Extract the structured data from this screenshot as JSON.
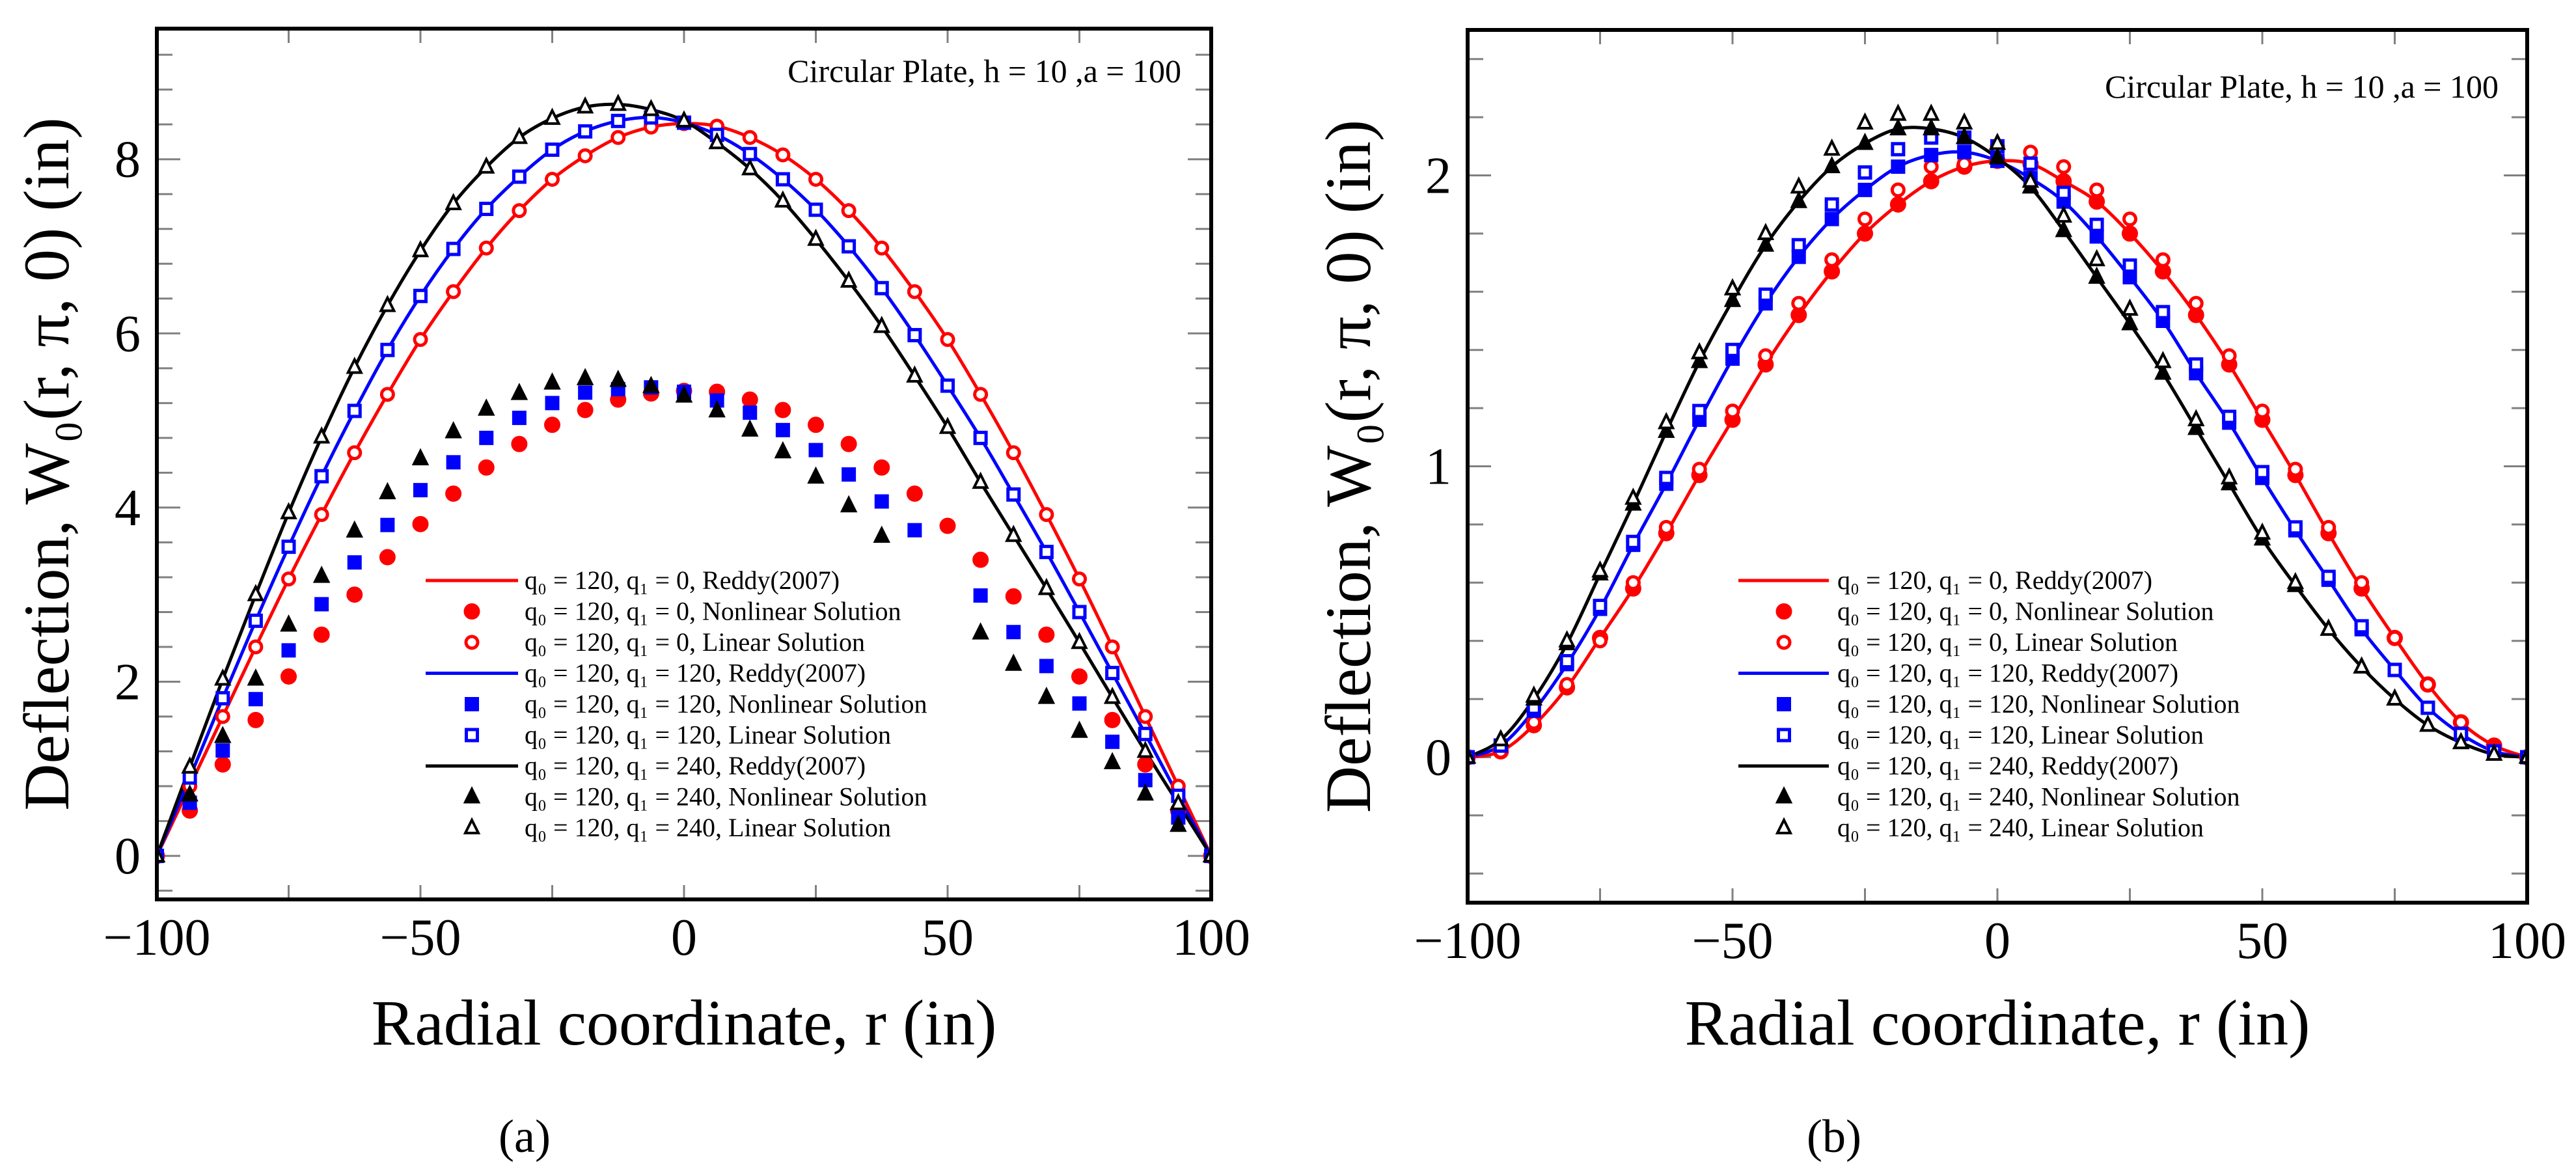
{
  "chart_data": [
    {
      "id": "a",
      "type": "line",
      "caption": "(a)",
      "annotation": "Circular Plate, h = 10 ,a = 100",
      "xlabel": "Radial coordinate, r (in)",
      "ylabel": "Deflection, W₀(r, π, 0) (in)",
      "xlim": [
        -100,
        100
      ],
      "ylim": [
        -0.5,
        9.5
      ],
      "xticks": [
        -100,
        -50,
        0,
        50,
        100
      ],
      "xtick_labels": [
        "−100",
        "−50",
        "0",
        "50",
        "100"
      ],
      "xminor_step": 25,
      "yticks": [
        0,
        2,
        4,
        6,
        8
      ],
      "ytick_labels": [
        "0",
        "2",
        "4",
        "6",
        "8"
      ],
      "yminor_step": 0.4,
      "legend_position": "center-bottom",
      "x": [
        -100,
        -93.75,
        -87.5,
        -81.25,
        -75,
        -68.75,
        -62.5,
        -56.25,
        -50,
        -43.75,
        -37.5,
        -31.25,
        -25,
        -18.75,
        -12.5,
        -6.25,
        0,
        6.25,
        12.5,
        18.75,
        25,
        31.25,
        37.5,
        43.75,
        50,
        56.25,
        62.5,
        68.75,
        75,
        81.25,
        87.5,
        93.75,
        100
      ],
      "series": [
        {
          "name": "q₀ = 120, q₁ = 0, Reddy(2007)",
          "color": "#ff0000",
          "style": "line",
          "values": [
            0,
            0.8,
            1.6,
            2.4,
            3.18,
            3.92,
            4.63,
            5.3,
            5.93,
            6.48,
            6.98,
            7.41,
            7.77,
            8.04,
            8.25,
            8.37,
            8.41,
            8.38,
            8.25,
            8.05,
            7.77,
            7.41,
            6.98,
            6.48,
            5.93,
            5.3,
            4.63,
            3.92,
            3.18,
            2.4,
            1.6,
            0.8,
            0
          ]
        },
        {
          "name": "q₀ = 120, q₁ = 0, Nonlinear Solution",
          "color": "#ff0000",
          "style": "marker",
          "marker": "circle-filled",
          "values": [
            0,
            0.52,
            1.05,
            1.56,
            2.06,
            2.54,
            3.0,
            3.43,
            3.81,
            4.16,
            4.46,
            4.73,
            4.95,
            5.12,
            5.24,
            5.31,
            5.34,
            5.33,
            5.24,
            5.12,
            4.95,
            4.73,
            4.46,
            4.16,
            3.79,
            3.4,
            2.98,
            2.54,
            2.06,
            1.56,
            1.05,
            0.52,
            0
          ]
        },
        {
          "name": "q₀ = 120, q₁ = 0, Linear Solution",
          "color": "#ff0000",
          "style": "marker",
          "marker": "circle-open",
          "values": [
            0,
            0.8,
            1.6,
            2.4,
            3.18,
            3.92,
            4.63,
            5.3,
            5.93,
            6.48,
            6.98,
            7.41,
            7.77,
            8.04,
            8.25,
            8.37,
            8.41,
            8.38,
            8.25,
            8.05,
            7.77,
            7.41,
            6.98,
            6.48,
            5.93,
            5.3,
            4.63,
            3.92,
            3.18,
            2.4,
            1.6,
            0.8,
            0
          ]
        },
        {
          "name": "q₀ = 120, q₁ = 120, Reddy(2007)",
          "color": "#0000ff",
          "style": "line",
          "values": [
            0,
            0.9,
            1.81,
            2.7,
            3.55,
            4.36,
            5.11,
            5.81,
            6.43,
            6.97,
            7.43,
            7.8,
            8.11,
            8.32,
            8.44,
            8.48,
            8.42,
            8.28,
            8.06,
            7.77,
            7.42,
            7.0,
            6.52,
            5.98,
            5.4,
            4.8,
            4.15,
            3.49,
            2.8,
            2.1,
            1.4,
            0.69,
            0
          ]
        },
        {
          "name": "q₀ = 120, q₁ = 120, Nonlinear Solution",
          "color": "#0000ff",
          "style": "marker",
          "marker": "square-filled",
          "values": [
            0,
            0.61,
            1.21,
            1.8,
            2.36,
            2.89,
            3.37,
            3.8,
            4.2,
            4.52,
            4.8,
            5.03,
            5.2,
            5.32,
            5.36,
            5.38,
            5.33,
            5.23,
            5.09,
            4.89,
            4.66,
            4.38,
            4.07,
            3.74,
            null,
            2.99,
            2.57,
            2.18,
            1.75,
            1.31,
            0.87,
            0.44,
            0
          ]
        },
        {
          "name": "q₀ = 120, q₁ = 120, Linear Solution",
          "color": "#0000ff",
          "style": "marker",
          "marker": "square-open",
          "values": [
            0,
            0.9,
            1.81,
            2.7,
            3.55,
            4.36,
            5.11,
            5.81,
            6.43,
            6.97,
            7.43,
            7.8,
            8.11,
            8.32,
            8.44,
            8.48,
            8.42,
            8.28,
            8.06,
            7.77,
            7.42,
            7.0,
            6.52,
            5.98,
            5.4,
            4.8,
            4.15,
            3.49,
            2.8,
            2.1,
            1.4,
            0.69,
            0
          ]
        },
        {
          "name": "q₀ = 120, q₁ = 240, Reddy(2007)",
          "color": "#000000",
          "style": "line",
          "values": [
            0,
            1.02,
            2.03,
            3.0,
            3.94,
            4.81,
            5.61,
            6.32,
            6.95,
            7.49,
            7.91,
            8.25,
            8.47,
            8.6,
            8.63,
            8.57,
            8.44,
            8.19,
            7.89,
            7.52,
            7.08,
            6.6,
            6.08,
            5.51,
            4.92,
            4.29,
            3.68,
            3.07,
            2.45,
            1.82,
            1.2,
            0.6,
            0
          ]
        },
        {
          "name": "q₀ = 120, q₁ = 240, Nonlinear Solution",
          "color": "#000000",
          "style": "marker",
          "marker": "triangle-filled",
          "values": [
            0,
            0.7,
            1.37,
            2.03,
            2.65,
            3.21,
            3.73,
            4.17,
            4.56,
            4.87,
            5.13,
            5.31,
            5.43,
            5.48,
            5.46,
            5.39,
            5.28,
            5.11,
            4.89,
            4.64,
            4.35,
            4.02,
            3.67,
            null,
            null,
            2.56,
            2.2,
            1.82,
            1.43,
            1.07,
            0.71,
            0.35,
            0
          ]
        },
        {
          "name": "q₀ = 120, q₁ = 240, Linear Solution",
          "color": "#000000",
          "style": "marker",
          "marker": "triangle-open",
          "values": [
            0,
            1.02,
            2.03,
            3.0,
            3.94,
            4.81,
            5.61,
            6.32,
            6.95,
            7.49,
            7.91,
            8.25,
            8.47,
            8.6,
            8.63,
            8.57,
            8.44,
            8.19,
            7.89,
            7.52,
            7.08,
            6.6,
            6.08,
            5.51,
            4.92,
            4.29,
            3.68,
            3.07,
            2.45,
            1.82,
            1.2,
            0.6,
            0
          ]
        }
      ]
    },
    {
      "id": "b",
      "type": "line",
      "caption": "(b)",
      "annotation": "Circular Plate, h = 10 ,a = 100",
      "xlabel": "Radial coordinate, r (in)",
      "ylabel": "Deflection, W₀(r, π, 0) (in)",
      "xlim": [
        -100,
        100
      ],
      "ylim": [
        -0.5,
        2.5
      ],
      "xticks": [
        -100,
        -50,
        0,
        50,
        100
      ],
      "xtick_labels": [
        "−100",
        "−50",
        "0",
        "50",
        "100"
      ],
      "xminor_step": 25,
      "yticks": [
        0,
        1,
        2
      ],
      "ytick_labels": [
        "0",
        "1",
        "2"
      ],
      "yminor_step": 0.2,
      "legend_position": "center-bottom",
      "x": [
        -100,
        -93.75,
        -87.5,
        -81.25,
        -75,
        -68.75,
        -62.5,
        -56.25,
        -50,
        -43.75,
        -37.5,
        -31.25,
        -25,
        -18.75,
        -12.5,
        -6.25,
        0,
        6.25,
        12.5,
        18.75,
        25,
        31.25,
        37.5,
        43.75,
        50,
        56.25,
        62.5,
        68.75,
        75,
        81.25,
        87.5,
        93.75,
        100
      ],
      "series": [
        {
          "name": "q₀ = 120, q₁ = 0, Reddy(2007)",
          "color": "#ff0000",
          "style": "line",
          "values": [
            0,
            0.02,
            0.11,
            0.24,
            0.41,
            0.58,
            0.77,
            0.97,
            1.16,
            1.35,
            1.52,
            1.67,
            1.8,
            1.9,
            1.98,
            2.03,
            2.05,
            2.04,
            1.98,
            1.91,
            1.8,
            1.67,
            1.52,
            1.35,
            1.16,
            0.97,
            0.77,
            0.58,
            0.41,
            0.25,
            0.12,
            0.04,
            0
          ]
        },
        {
          "name": "q₀ = 120, q₁ = 0, Nonlinear Solution",
          "color": "#ff0000",
          "style": "marker",
          "marker": "circle-filled",
          "values": [
            0,
            0.02,
            0.11,
            0.24,
            0.41,
            0.58,
            0.77,
            0.97,
            1.16,
            1.35,
            1.52,
            1.67,
            1.8,
            1.9,
            1.98,
            2.03,
            2.05,
            2.04,
            1.98,
            1.91,
            1.8,
            1.67,
            1.52,
            1.35,
            1.16,
            0.97,
            0.77,
            0.58,
            0.41,
            0.25,
            0.12,
            0.04,
            0
          ]
        },
        {
          "name": "q₀ = 120, q₁ = 0, Linear Solution",
          "color": "#ff0000",
          "style": "marker",
          "marker": "circle-open",
          "values": [
            0,
            0.02,
            0.12,
            0.25,
            0.4,
            0.6,
            0.79,
            0.99,
            1.19,
            1.38,
            1.56,
            1.71,
            1.85,
            1.95,
            2.03,
            2.04,
            2.1,
            2.08,
            2.03,
            1.95,
            1.85,
            1.71,
            1.56,
            1.38,
            1.19,
            0.99,
            0.79,
            0.6,
            0.41,
            0.25,
            0.12,
            0.03,
            0
          ]
        },
        {
          "name": "q₀ = 120, q₁ = 120, Reddy(2007)",
          "color": "#0000ff",
          "style": "line",
          "values": [
            0,
            0.04,
            0.16,
            0.32,
            0.51,
            0.73,
            0.94,
            1.16,
            1.37,
            1.56,
            1.72,
            1.85,
            1.95,
            2.03,
            2.07,
            2.08,
            2.05,
            1.99,
            1.91,
            1.79,
            1.65,
            1.5,
            1.32,
            1.15,
            0.96,
            0.78,
            0.61,
            0.44,
            0.3,
            0.17,
            0.08,
            0.02,
            0
          ]
        },
        {
          "name": "q₀ = 120, q₁ = 120, Nonlinear Solution",
          "color": "#0000ff",
          "style": "marker",
          "marker": "square-filled",
          "values": [
            0,
            0.04,
            0.16,
            0.32,
            0.51,
            0.73,
            0.94,
            1.16,
            1.37,
            1.56,
            1.72,
            1.85,
            1.95,
            2.03,
            2.07,
            2.08,
            2.05,
            1.99,
            1.91,
            1.79,
            1.65,
            1.5,
            1.32,
            1.15,
            0.96,
            0.78,
            0.61,
            0.44,
            0.3,
            0.17,
            0.08,
            0.02,
            0
          ]
        },
        {
          "name": "q₀ = 120, q₁ = 120, Linear Solution",
          "color": "#0000ff",
          "style": "marker",
          "marker": "square-open",
          "values": [
            0,
            0.04,
            0.17,
            0.33,
            0.52,
            0.74,
            0.96,
            1.19,
            1.4,
            1.59,
            1.76,
            1.9,
            2.01,
            2.09,
            2.13,
            2.13,
            2.1,
            2.04,
            1.94,
            1.83,
            1.69,
            1.53,
            1.35,
            1.17,
            0.98,
            0.79,
            0.62,
            0.45,
            0.3,
            0.17,
            0.08,
            0.02,
            0
          ]
        },
        {
          "name": "q₀ = 120, q₁ = 240, Reddy(2007)",
          "color": "#000000",
          "style": "line",
          "values": [
            0,
            0.06,
            0.2,
            0.39,
            0.63,
            0.87,
            1.12,
            1.36,
            1.57,
            1.76,
            1.91,
            2.03,
            2.11,
            2.16,
            2.16,
            2.13,
            2.06,
            1.96,
            1.81,
            1.65,
            1.49,
            1.32,
            1.13,
            0.94,
            0.75,
            0.59,
            0.44,
            0.31,
            0.2,
            0.11,
            0.05,
            0.01,
            0
          ]
        },
        {
          "name": "q₀ = 120, q₁ = 240, Nonlinear Solution",
          "color": "#000000",
          "style": "marker",
          "marker": "triangle-filled",
          "values": [
            0,
            0.06,
            0.2,
            0.39,
            0.63,
            0.87,
            1.12,
            1.36,
            1.57,
            1.76,
            1.91,
            2.03,
            2.11,
            2.16,
            2.16,
            2.13,
            2.06,
            1.96,
            1.81,
            1.65,
            1.49,
            1.32,
            1.13,
            0.94,
            0.75,
            0.59,
            0.44,
            0.31,
            0.2,
            0.11,
            0.05,
            0.01,
            0
          ]
        },
        {
          "name": "q₀ = 120, q₁ = 240, Linear Solution",
          "color": "#000000",
          "style": "marker",
          "marker": "triangle-open",
          "values": [
            0,
            0.06,
            0.21,
            0.4,
            0.64,
            0.89,
            1.15,
            1.39,
            1.61,
            1.8,
            1.96,
            2.09,
            2.18,
            2.21,
            2.21,
            2.18,
            2.11,
            1.98,
            1.86,
            1.71,
            1.54,
            1.36,
            1.16,
            0.96,
            0.77,
            0.6,
            0.44,
            0.31,
            0.2,
            0.11,
            0.05,
            0.01,
            0
          ]
        }
      ]
    }
  ]
}
